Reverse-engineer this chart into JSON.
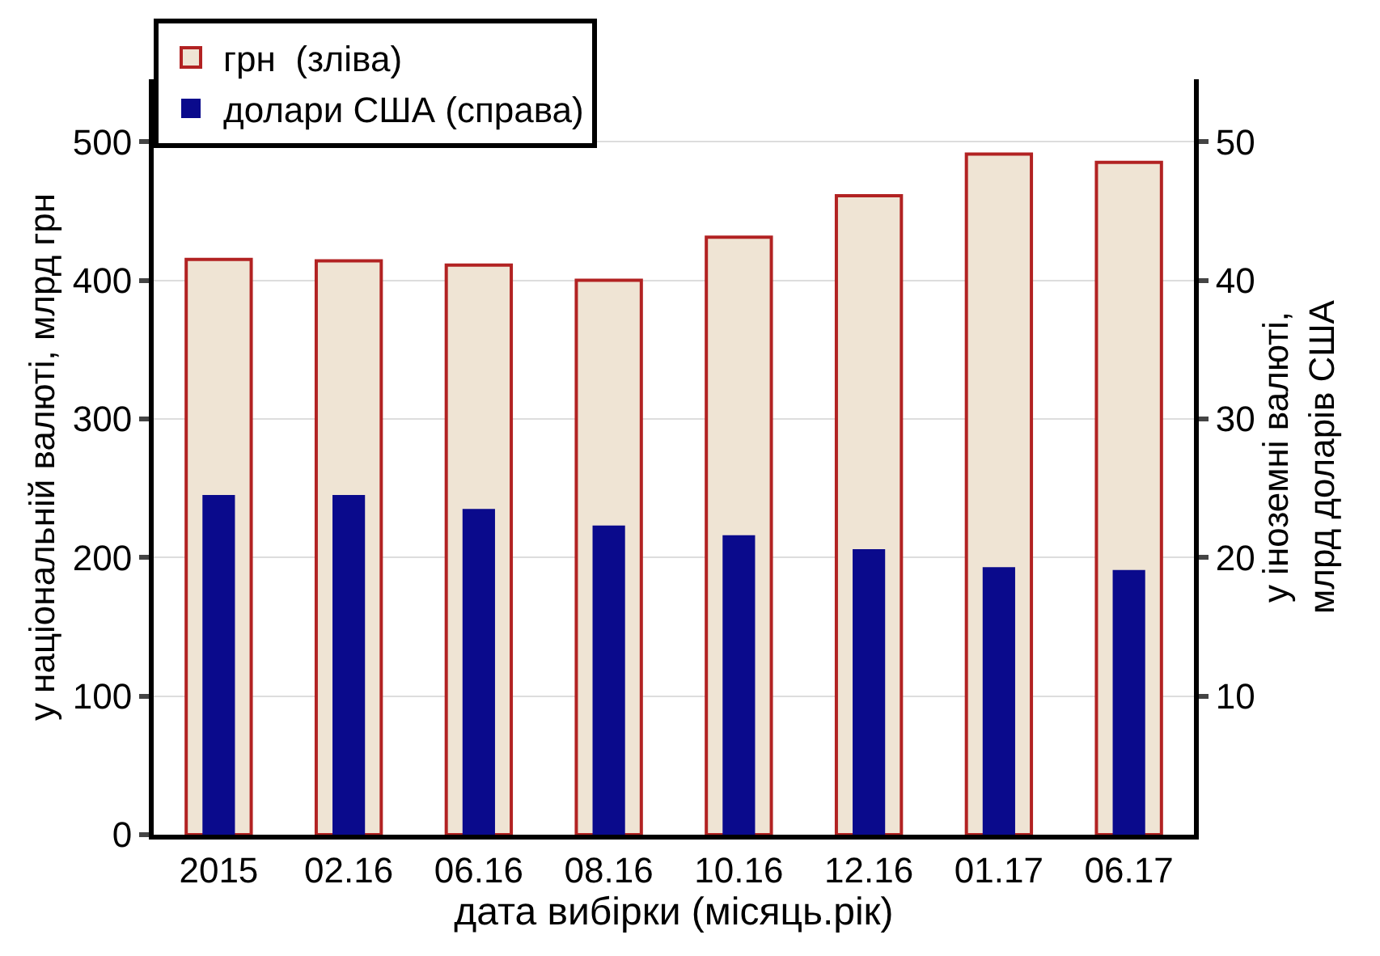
{
  "chart_data": {
    "type": "bar",
    "xlabel": "дата вибірки (місяць.рік)",
    "ylabel": "у національній валюті, млрд грн",
    "y2label": "у іноземні валюті,\nмлрд доларів США",
    "categories": [
      "2015",
      "02.16",
      "06.16",
      "08.16",
      "10.16",
      "12.16",
      "01.17",
      "06.17"
    ],
    "series": [
      {
        "name": "грн  (зліва)",
        "color": "#efe4d4",
        "values": [
          415,
          414,
          411,
          400,
          431,
          461,
          491,
          485
        ]
      },
      {
        "name": "долари США (справа)",
        "color": "#0a0a8c",
        "axis": "y2",
        "values": [
          24.5,
          24.5,
          23.5,
          22.3,
          21.6,
          20.6,
          19.3,
          19.1
        ]
      }
    ],
    "ylim": [
      0,
      545
    ],
    "yticks": [
      0,
      100,
      200,
      300,
      400,
      500
    ],
    "y2lim": [
      0,
      54.5
    ],
    "y2ticks": [
      10,
      20,
      30,
      40,
      50
    ],
    "grid": "y",
    "legend": "top left"
  }
}
